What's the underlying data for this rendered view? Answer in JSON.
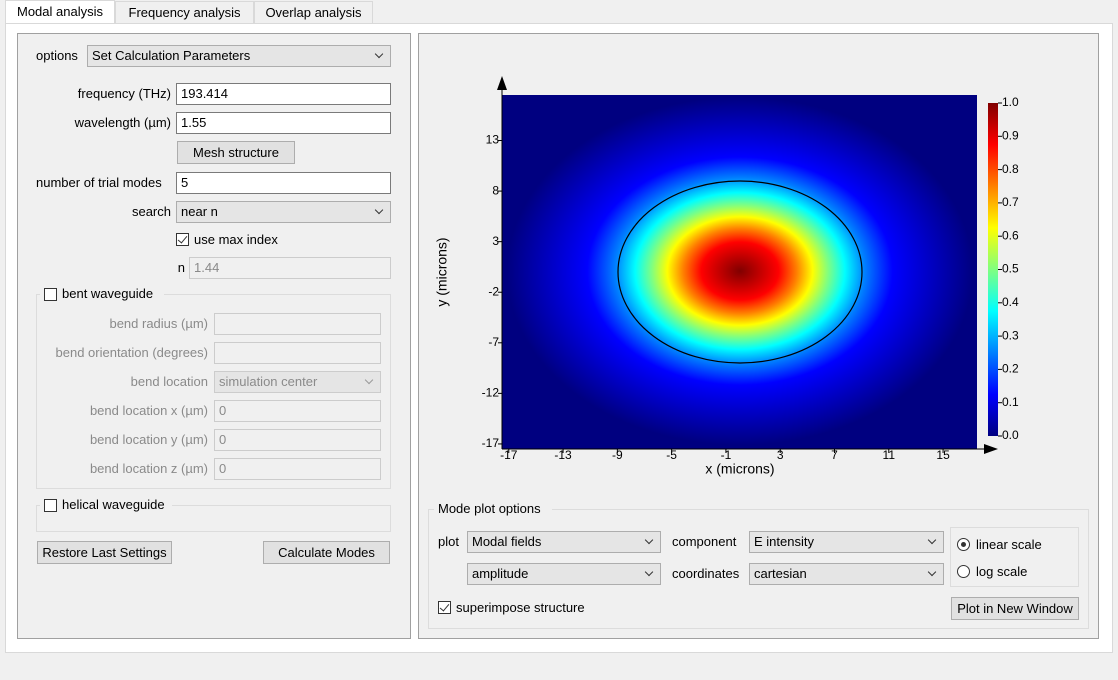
{
  "tabs": [
    "Modal analysis",
    "Frequency analysis",
    "Overlap analysis"
  ],
  "settings": {
    "options_label": "options",
    "options": "Set Calculation Parameters",
    "frequency_label": "frequency (THz)",
    "frequency": "193.414",
    "wavelength_label": "wavelength (µm)",
    "wavelength": "1.55",
    "mesh_button": "Mesh structure",
    "trial_modes_label": "number of trial modes",
    "trial_modes": "5",
    "search_label": "search",
    "search": "near n",
    "use_max_index": "use max index",
    "n_label": "n",
    "n": "1.44"
  },
  "bent": {
    "title": "bent waveguide",
    "radius_label": "bend radius (µm)",
    "orientation_label": "bend orientation (degrees)",
    "location_label": "bend location",
    "location": "simulation center",
    "x_label": "bend location x (µm)",
    "x": "0",
    "y_label": "bend location y (µm)",
    "y": "0",
    "z_label": "bend location z (µm)",
    "z": "0"
  },
  "helical": {
    "title": "helical waveguide"
  },
  "buttons": {
    "restore": "Restore Last Settings",
    "calculate": "Calculate Modes"
  },
  "chart_data": {
    "type": "heatmap",
    "xlabel": "x (microns)",
    "ylabel": "y (microns)",
    "xlim": [
      -17.5,
      17.5
    ],
    "ylim": [
      -17.5,
      17.5
    ],
    "xticks": [
      -17,
      -13,
      -9,
      -5,
      -1,
      3,
      7,
      11,
      15
    ],
    "yticks": [
      -17,
      -12,
      -7,
      -2,
      3,
      8,
      13
    ],
    "colormap": "jet",
    "clim": [
      0,
      1
    ],
    "colorbar_ticks": [
      {
        "value": 0,
        "label": "0.0"
      },
      0.1,
      0.2,
      0.3,
      0.4,
      0.5,
      0.6,
      0.7,
      0.8,
      0.9,
      {
        "value": 1,
        "label": "1.0"
      }
    ]
  },
  "plot_options": {
    "title": "Mode plot options",
    "plot_label": "plot",
    "plot": "Modal fields",
    "plot2": "amplitude",
    "component_label": "component",
    "component": "E intensity",
    "coordinates_label": "coordinates",
    "coordinates": "cartesian",
    "linear": "linear scale",
    "log": "log scale",
    "superimpose": "superimpose structure",
    "new_window": "Plot in New Window"
  }
}
